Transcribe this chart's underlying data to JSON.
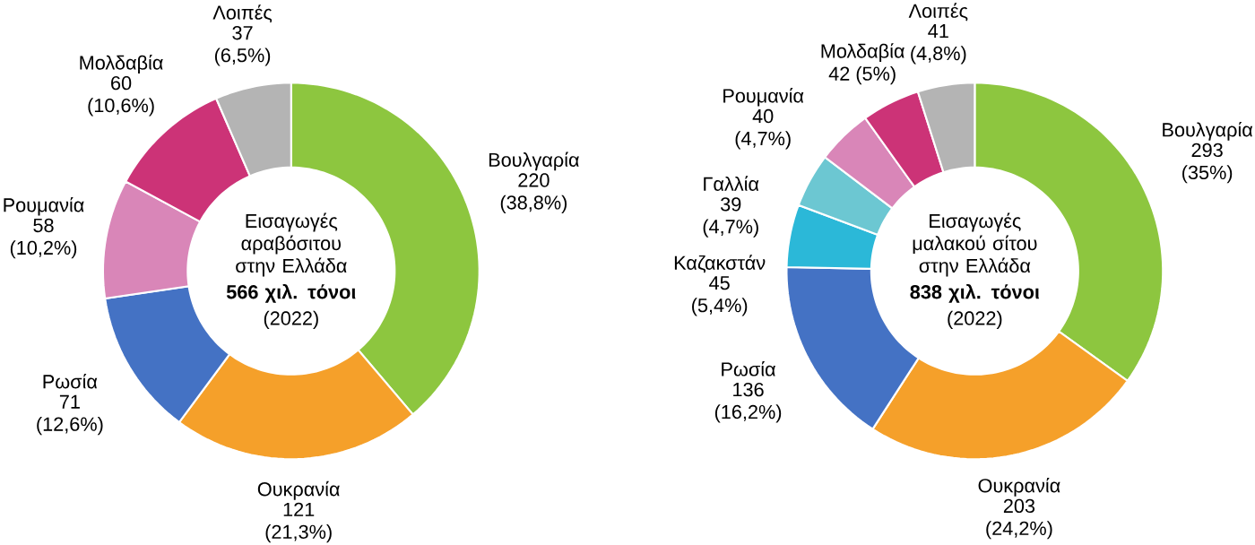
{
  "chart_data": [
    {
      "type": "donut",
      "title": "Εισαγωγές αραβόσιτου στην Ελλάδα",
      "subtitle": "566 χιλ. τόνοι",
      "annotations": [
        "(2022)"
      ],
      "categories": [
        "Βουλγαρία",
        "Ουκρανία",
        "Ρωσία",
        "Ρουμανία",
        "Μολδαβία",
        "Λοιπές"
      ],
      "values": [
        220,
        121,
        71,
        58,
        60,
        37
      ],
      "value_labels": [
        "220 (38,8%)",
        "121 (21,3%)",
        "71 (12,6%)",
        "58 (10,2%)",
        "60 (10,6%)",
        "37 (6,5%)"
      ],
      "colors": [
        "#8dc63f",
        "#f5a02a",
        "#4472c4",
        "#d986b8",
        "#cc3377",
        "#b4b4b4"
      ]
    },
    {
      "type": "donut",
      "title": "Εισαγωγές μαλακού σίτου στην Ελλάδα",
      "subtitle": "838 χιλ. τόνοι",
      "annotations": [
        "(2022)"
      ],
      "categories": [
        "Βουλγαρία",
        "Ουκρανία",
        "Ρωσία",
        "Καζακστάν",
        "Γαλλία",
        "Ρουμανία",
        "Μολδαβία",
        "Λοιπές"
      ],
      "values": [
        293,
        203,
        136,
        45,
        39,
        40,
        42,
        41
      ],
      "value_labels": [
        "293 (35%)",
        "203 (24,2%)",
        "136 (16,2%)",
        "45 (5,4%)",
        "39 (4,7%)",
        "40 (4,7%)",
        "42 (5%)",
        "41 (4,8%)"
      ],
      "colors": [
        "#8dc63f",
        "#f5a02a",
        "#4472c4",
        "#2bb8d8",
        "#6cc7d2",
        "#d986b8",
        "#cc3377",
        "#b4b4b4"
      ]
    }
  ]
}
